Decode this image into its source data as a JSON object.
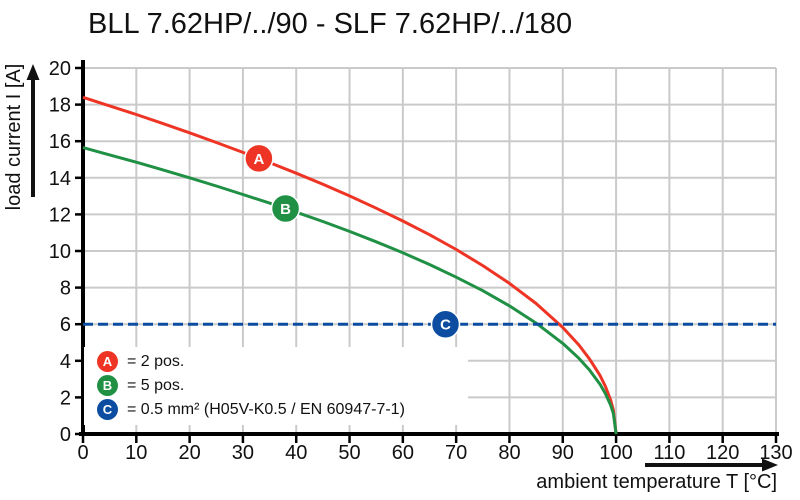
{
  "title": "BLL 7.62HP/../90 - SLF 7.62HP/../180",
  "axes": {
    "x": {
      "label": "ambient temperature T [°C]",
      "min": 0,
      "max": 130,
      "ticks": [
        0,
        10,
        20,
        30,
        40,
        50,
        60,
        70,
        80,
        90,
        100,
        110,
        120,
        130
      ]
    },
    "y": {
      "label": "load current I [A]",
      "min": 0,
      "max": 20,
      "ticks": [
        0,
        2,
        4,
        6,
        8,
        10,
        12,
        14,
        16,
        18,
        20
      ]
    }
  },
  "legend": {
    "items": [
      {
        "id": "A",
        "label": "= 2 pos.",
        "color": "#ee3424"
      },
      {
        "id": "B",
        "label": "= 5 pos.",
        "color": "#1f9044"
      },
      {
        "id": "C",
        "label": "= 0.5 mm² (H05V-K0.5 / EN 60947-7-1)",
        "color": "#0c4da1"
      }
    ]
  },
  "chart_data": {
    "type": "line",
    "title": "BLL 7.62HP/../90 - SLF 7.62HP/../180",
    "xlabel": "ambient temperature T [°C]",
    "ylabel": "load current I [A]",
    "xlim": [
      0,
      130
    ],
    "ylim": [
      0,
      20
    ],
    "x_ticks": [
      0,
      10,
      20,
      30,
      40,
      50,
      60,
      70,
      80,
      90,
      100,
      110,
      120,
      130
    ],
    "y_ticks": [
      0,
      2,
      4,
      6,
      8,
      10,
      12,
      14,
      16,
      18,
      20
    ],
    "grid": true,
    "grid_color": "#cacaca",
    "series": [
      {
        "name": "2 pos.",
        "marker": "A",
        "color": "#ee3424",
        "style": "solid",
        "points": [
          [
            0,
            18.4
          ],
          [
            5,
            17.93
          ],
          [
            10,
            17.46
          ],
          [
            15,
            16.96
          ],
          [
            20,
            16.46
          ],
          [
            25,
            15.93
          ],
          [
            30,
            15.39
          ],
          [
            35,
            14.83
          ],
          [
            40,
            14.25
          ],
          [
            45,
            13.65
          ],
          [
            50,
            13.01
          ],
          [
            55,
            12.34
          ],
          [
            60,
            11.64
          ],
          [
            65,
            10.89
          ],
          [
            70,
            10.08
          ],
          [
            75,
            9.2
          ],
          [
            80,
            8.23
          ],
          [
            85,
            7.13
          ],
          [
            90,
            5.82
          ],
          [
            93,
            4.87
          ],
          [
            95,
            4.11
          ],
          [
            97,
            3.19
          ],
          [
            98,
            2.6
          ],
          [
            99,
            1.84
          ],
          [
            99.5,
            1.3
          ],
          [
            100,
            0
          ]
        ]
      },
      {
        "name": "5 pos.",
        "marker": "B",
        "color": "#1f9044",
        "style": "solid",
        "points": [
          [
            0,
            15.65
          ],
          [
            5,
            15.25
          ],
          [
            10,
            14.85
          ],
          [
            15,
            14.43
          ],
          [
            20,
            14.0
          ],
          [
            25,
            13.55
          ],
          [
            30,
            13.09
          ],
          [
            35,
            12.62
          ],
          [
            40,
            12.12
          ],
          [
            45,
            11.61
          ],
          [
            50,
            11.07
          ],
          [
            55,
            10.5
          ],
          [
            60,
            9.9
          ],
          [
            65,
            9.26
          ],
          [
            70,
            8.57
          ],
          [
            75,
            7.83
          ],
          [
            80,
            7.0
          ],
          [
            85,
            6.06
          ],
          [
            90,
            4.95
          ],
          [
            93,
            4.14
          ],
          [
            95,
            3.5
          ],
          [
            97,
            2.71
          ],
          [
            98,
            2.21
          ],
          [
            99,
            1.57
          ],
          [
            99.5,
            1.11
          ],
          [
            100,
            0
          ]
        ]
      },
      {
        "name": "0.5 mm² (H05V-K0.5 / EN 60947-7-1)",
        "marker": "C",
        "color": "#0c4da1",
        "style": "dashed",
        "points": [
          [
            0,
            6
          ],
          [
            130,
            6
          ]
        ]
      }
    ],
    "marker_positions": [
      {
        "id": "A",
        "x": 33,
        "y": 15.06,
        "color": "#ee3424"
      },
      {
        "id": "B",
        "x": 38,
        "y": 12.32,
        "color": "#1f9044"
      },
      {
        "id": "C",
        "x": 68,
        "y": 6,
        "color": "#0c4da1"
      }
    ]
  }
}
